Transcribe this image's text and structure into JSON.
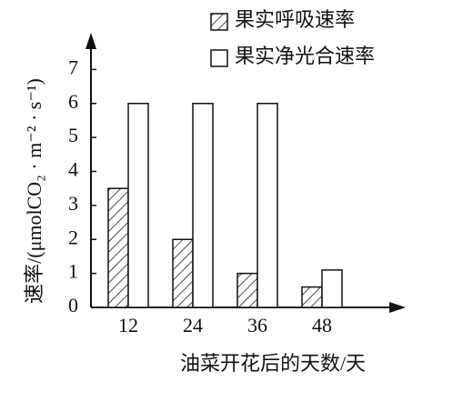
{
  "chart_data": {
    "type": "bar",
    "x_label": "油菜开花后的天数/天",
    "y_label": "速率/(μmolCO₂ · m⁻² · s⁻¹)",
    "categories": [
      "12",
      "24",
      "36",
      "48"
    ],
    "series": [
      {
        "name": "果实呼吸速率",
        "color": "#ffffff",
        "hatch": true,
        "values": [
          3.5,
          2,
          1,
          0.6
        ]
      },
      {
        "name": "果实净光合速率",
        "color": "#ffffff",
        "hatch": false,
        "values": [
          6,
          6,
          6,
          1.1
        ]
      }
    ],
    "ylim": [
      0,
      8
    ],
    "yticks": [
      0,
      1,
      2,
      3,
      4,
      5,
      6,
      7
    ],
    "grid": false
  }
}
